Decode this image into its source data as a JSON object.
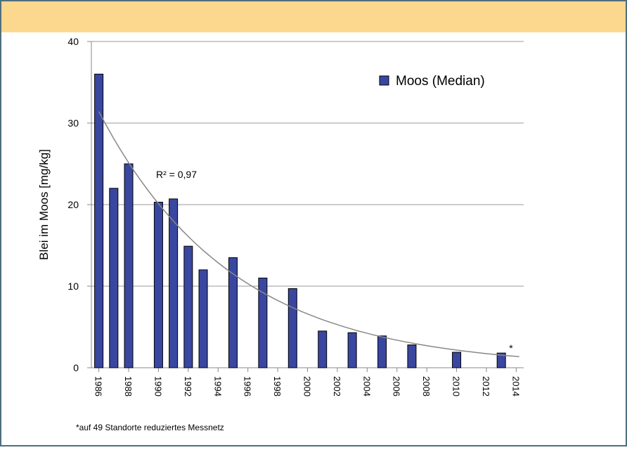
{
  "chart_data": {
    "type": "bar",
    "y_label": "Blei im Moos [mg/kg]",
    "x": [
      1986,
      1987,
      1988,
      1990,
      1991,
      1992,
      1993,
      1995,
      1997,
      1999,
      2001,
      2003,
      2005,
      2007,
      2010,
      2013
    ],
    "series": [
      {
        "name": "Moos (Median)",
        "color": "#3a47a0",
        "values": [
          36,
          22,
          25,
          20.3,
          20.7,
          14.9,
          12,
          13.5,
          11,
          9.7,
          4.5,
          4.3,
          3.9,
          2.8,
          1.9,
          1.8
        ]
      }
    ],
    "xlim": [
      1985.5,
      2014.5
    ],
    "xticks": [
      1986,
      1988,
      1990,
      1992,
      1994,
      1996,
      1998,
      2000,
      2002,
      2004,
      2006,
      2008,
      2010,
      2012,
      2014
    ],
    "ylim": [
      0,
      40
    ],
    "yticks": [
      0,
      10,
      20,
      30,
      40
    ],
    "grid": true,
    "legend": "upper right",
    "trendline": "exponential",
    "annotations": [
      "R² = 0,97",
      "*"
    ],
    "footnote": "*auf 49 Standorte reduziertes Messnetz"
  }
}
